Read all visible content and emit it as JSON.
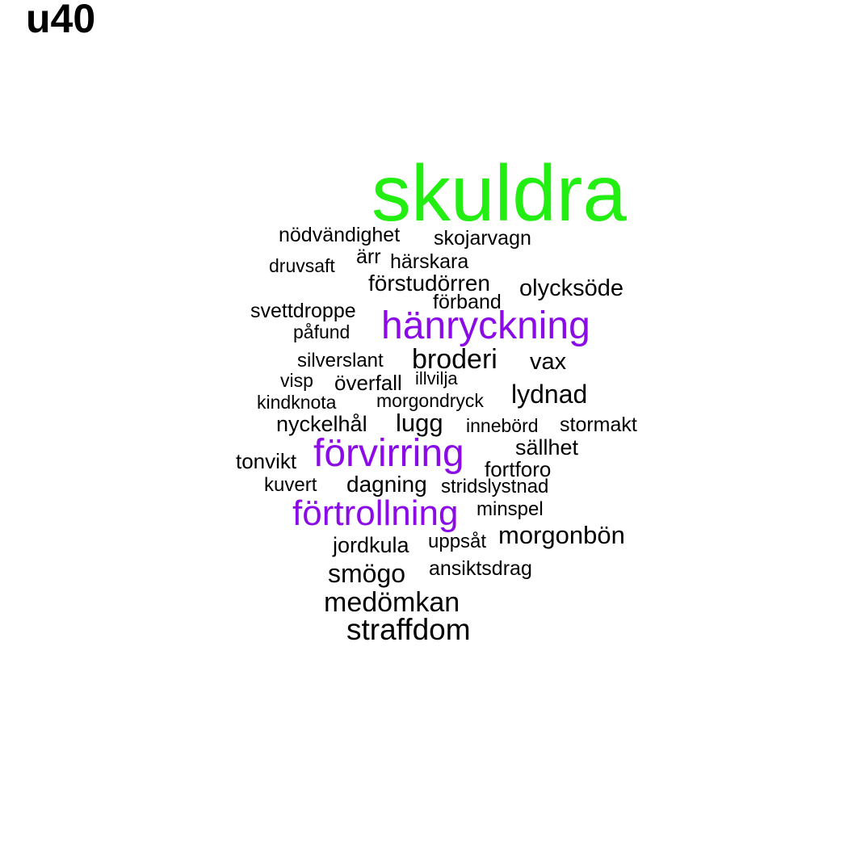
{
  "title": "u40",
  "colors": {
    "top": "#22ee11",
    "second": "#8a0be5",
    "default": "#000000"
  },
  "words": [
    {
      "text": "skuldra",
      "tier": "top"
    },
    {
      "text": "hänryckning",
      "tier": "second"
    },
    {
      "text": "förvirring",
      "tier": "second"
    },
    {
      "text": "förtrollning",
      "tier": "second"
    },
    {
      "text": "nödvändighet",
      "tier": "default"
    },
    {
      "text": "skojarvagn",
      "tier": "default"
    },
    {
      "text": "ärr",
      "tier": "default"
    },
    {
      "text": "härskara",
      "tier": "default"
    },
    {
      "text": "druvsaft",
      "tier": "default"
    },
    {
      "text": "förstudörren",
      "tier": "default"
    },
    {
      "text": "olycksöde",
      "tier": "default"
    },
    {
      "text": "förband",
      "tier": "default"
    },
    {
      "text": "svettdroppe",
      "tier": "default"
    },
    {
      "text": "påfund",
      "tier": "default"
    },
    {
      "text": "silverslant",
      "tier": "default"
    },
    {
      "text": "broderi",
      "tier": "default"
    },
    {
      "text": "vax",
      "tier": "default"
    },
    {
      "text": "visp",
      "tier": "default"
    },
    {
      "text": "överfall",
      "tier": "default"
    },
    {
      "text": "illvilja",
      "tier": "default"
    },
    {
      "text": "kindknota",
      "tier": "default"
    },
    {
      "text": "morgondryck",
      "tier": "default"
    },
    {
      "text": "lydnad",
      "tier": "default"
    },
    {
      "text": "nyckelhål",
      "tier": "default"
    },
    {
      "text": "lugg",
      "tier": "default"
    },
    {
      "text": "innebörd",
      "tier": "default"
    },
    {
      "text": "stormakt",
      "tier": "default"
    },
    {
      "text": "sällhet",
      "tier": "default"
    },
    {
      "text": "tonvikt",
      "tier": "default"
    },
    {
      "text": "fortforo",
      "tier": "default"
    },
    {
      "text": "kuvert",
      "tier": "default"
    },
    {
      "text": "dagning",
      "tier": "default"
    },
    {
      "text": "stridslystnad",
      "tier": "default"
    },
    {
      "text": "minspel",
      "tier": "default"
    },
    {
      "text": "jordkula",
      "tier": "default"
    },
    {
      "text": "uppsåt",
      "tier": "default"
    },
    {
      "text": "morgonbön",
      "tier": "default"
    },
    {
      "text": "smögo",
      "tier": "default"
    },
    {
      "text": "ansiktsdrag",
      "tier": "default"
    },
    {
      "text": "medömkan",
      "tier": "default"
    },
    {
      "text": "straffdom",
      "tier": "default"
    }
  ]
}
